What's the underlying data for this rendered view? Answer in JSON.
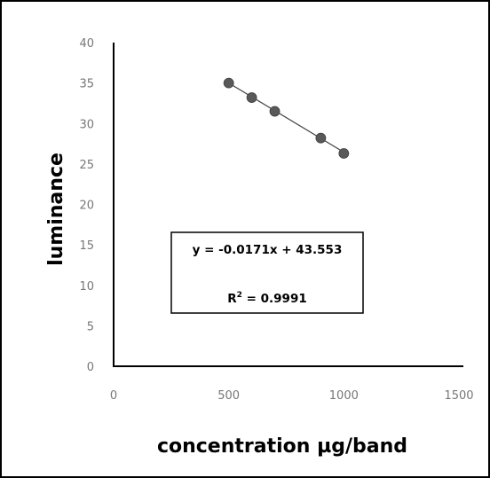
{
  "chart_data": {
    "type": "scatter",
    "title": "",
    "xlabel": "concentration µg/band",
    "ylabel": "luminance",
    "xlim": [
      0,
      1500
    ],
    "ylim": [
      0,
      40
    ],
    "x_ticks": [
      0,
      500,
      1000,
      1500
    ],
    "y_ticks": [
      0,
      5,
      10,
      15,
      20,
      25,
      30,
      35,
      40
    ],
    "grid": false,
    "legend": "none",
    "series": [
      {
        "x": [
          500,
          600,
          700,
          900,
          1000
        ],
        "y": [
          35.0,
          33.2,
          31.5,
          28.2,
          26.3
        ],
        "marker_color": "#595959"
      }
    ],
    "trendline": {
      "slope": -0.0171,
      "intercept": 43.553,
      "x_range": [
        500,
        1000
      ],
      "color": "#404040"
    },
    "annotation": {
      "equation": "y = -0.0171x + 43.553",
      "r2_label": "R",
      "r2_sup": "2",
      "r2_value": " = 0.9991"
    }
  }
}
